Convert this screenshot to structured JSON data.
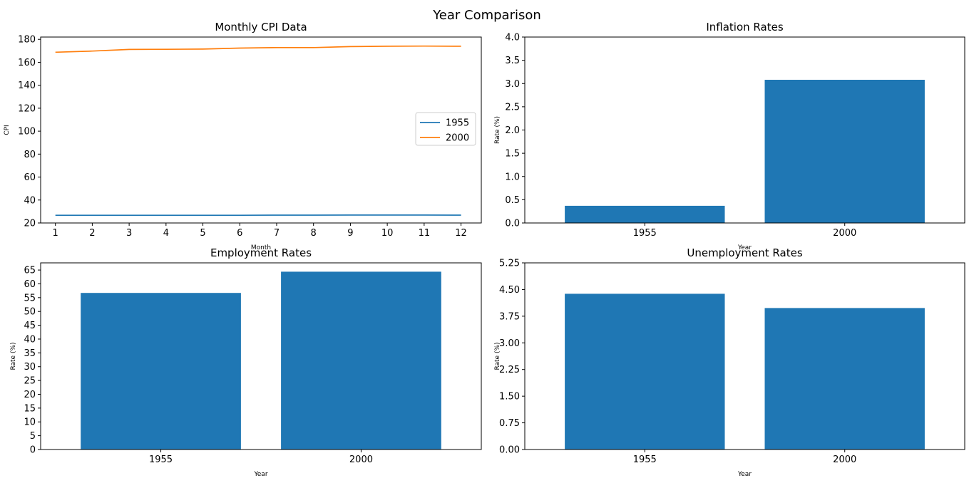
{
  "figure": {
    "title": "Year Comparison"
  },
  "colors": {
    "series_1955": "#1f77b4",
    "series_2000": "#ff7f0e",
    "bar": "#1f77b4",
    "legend_border": "#cccccc"
  },
  "chart_data": [
    {
      "type": "line",
      "title": "Monthly CPI Data",
      "xlabel": "Month",
      "ylabel": "CPI",
      "x": [
        1,
        2,
        3,
        4,
        5,
        6,
        7,
        8,
        9,
        10,
        11,
        12
      ],
      "xlim": [
        0.6,
        12.55
      ],
      "ylim": [
        20,
        182
      ],
      "yticks": [
        20,
        40,
        60,
        80,
        100,
        120,
        140,
        160,
        180
      ],
      "grid": false,
      "legend": "center-right",
      "series": [
        {
          "name": "1955",
          "color": "#1f77b4",
          "values": [
            26.7,
            26.7,
            26.7,
            26.7,
            26.7,
            26.7,
            26.8,
            26.8,
            26.9,
            26.9,
            26.9,
            26.8
          ]
        },
        {
          "name": "2000",
          "color": "#ff7f0e",
          "values": [
            168.8,
            169.8,
            171.2,
            171.3,
            171.5,
            172.4,
            172.8,
            172.8,
            173.7,
            174.0,
            174.1,
            174.0
          ]
        }
      ]
    },
    {
      "type": "bar",
      "title": "Inflation Rates",
      "xlabel": "Year",
      "ylabel": "Rate (%)",
      "categories": [
        "1955",
        "2000"
      ],
      "values": [
        0.37,
        3.08
      ],
      "ylim": [
        0,
        4.0
      ],
      "yticks": [
        0.0,
        0.5,
        1.0,
        1.5,
        2.0,
        2.5,
        3.0,
        3.5,
        4.0
      ],
      "ytick_decimals": 1,
      "grid": false
    },
    {
      "type": "bar",
      "title": "Employment Rates",
      "xlabel": "Year",
      "ylabel": "Rate (%)",
      "categories": [
        "1955",
        "2000"
      ],
      "values": [
        56.7,
        64.4
      ],
      "ylim": [
        0,
        67.6
      ],
      "yticks": [
        0,
        5,
        10,
        15,
        20,
        25,
        30,
        35,
        40,
        45,
        50,
        55,
        60,
        65
      ],
      "ytick_decimals": 0,
      "grid": false
    },
    {
      "type": "bar",
      "title": "Unemployment Rates",
      "xlabel": "Year",
      "ylabel": "Rate (%)",
      "categories": [
        "1955",
        "2000"
      ],
      "values": [
        4.38,
        3.98
      ],
      "ylim": [
        0,
        5.25
      ],
      "yticks": [
        0.0,
        0.75,
        1.5,
        2.25,
        3.0,
        3.75,
        4.5,
        5.25
      ],
      "ytick_decimals": 2,
      "grid": false
    }
  ]
}
